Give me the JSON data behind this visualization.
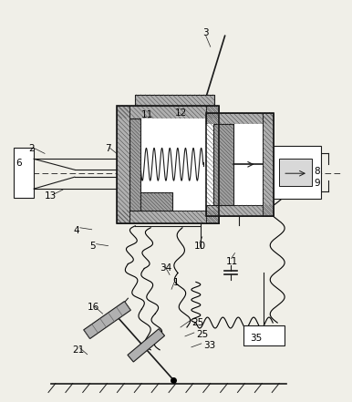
{
  "fig_width": 3.86,
  "fig_height": 4.41,
  "dpi": 100,
  "bg_color": "#f0efe8",
  "line_color": "#1a1a1a",
  "hatch_color": "#555555",
  "fill_gray": "#b0b0b0"
}
